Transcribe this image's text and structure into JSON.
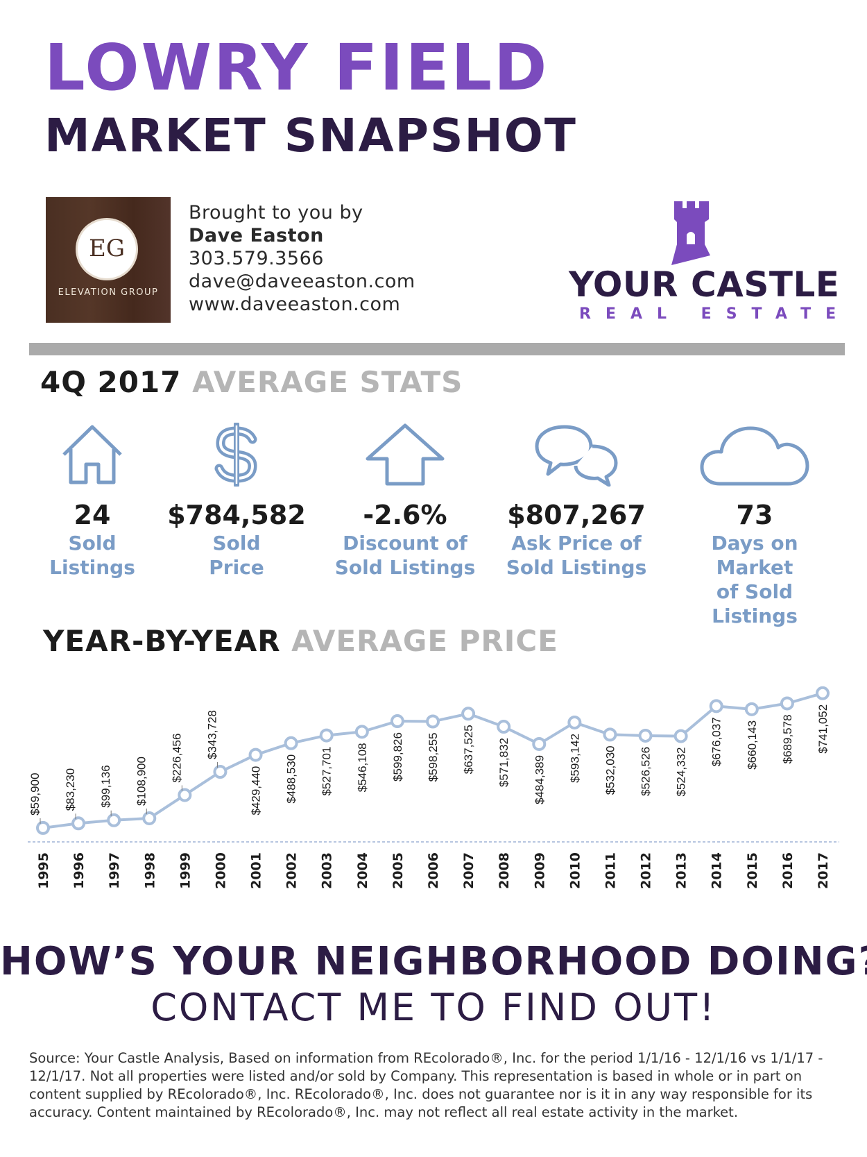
{
  "header": {
    "title_line1": "LOWRY FIELD",
    "title_line2": "MARKET SNAPSHOT"
  },
  "agent": {
    "logo_monogram": "EG",
    "logo_name": "ELEVATION GROUP",
    "intro": "Brought to you by",
    "name": "Dave Easton",
    "phone": "303.579.3566",
    "email": "dave@daveeaston.com",
    "website": "www.daveeaston.com"
  },
  "brand": {
    "name": "YOUR CASTLE",
    "subtitle": "REAL ESTATE",
    "icon": "castle-tower-icon",
    "color": "#7b4bbd"
  },
  "stats_section": {
    "heading_dark": "4Q 2017",
    "heading_grey": "AVERAGE STATS",
    "items": [
      {
        "icon": "house-icon",
        "value": "24",
        "label_line1": "Sold",
        "label_line2": "Listings"
      },
      {
        "icon": "dollar-icon",
        "value": "$784,582",
        "label_line1": "Sold",
        "label_line2": "Price"
      },
      {
        "icon": "up-arrow-icon",
        "value": "-2.6%",
        "label_line1": "Discount of",
        "label_line2": "Sold Listings"
      },
      {
        "icon": "chat-bubbles-icon",
        "value": "$807,267",
        "label_line1": "Ask Price of",
        "label_line2": "Sold Listings"
      },
      {
        "icon": "cloud-icon",
        "value": "73",
        "label_line1": "Days on Market",
        "label_line2": "of Sold Listings"
      }
    ]
  },
  "chart_section": {
    "heading_dark": "YEAR-BY-YEAR",
    "heading_grey": "AVERAGE PRICE"
  },
  "chart_data": {
    "type": "line",
    "title": "",
    "xlabel": "",
    "ylabel": "",
    "x": [
      "1995",
      "1996",
      "1997",
      "1998",
      "1999",
      "2000",
      "2001",
      "2002",
      "2003",
      "2004",
      "2005",
      "2006",
      "2007",
      "2008",
      "2009",
      "2010",
      "2011",
      "2012",
      "2013",
      "2014",
      "2015",
      "2016",
      "2017"
    ],
    "values": [
      59900,
      83230,
      99136,
      108900,
      226456,
      343728,
      429440,
      488530,
      527701,
      546108,
      599826,
      598255,
      637525,
      571832,
      484389,
      593142,
      532030,
      526526,
      524332,
      676037,
      660143,
      689578,
      741052
    ],
    "data_labels": [
      "$59,900",
      "$83,230",
      "$99,136",
      "$108,900",
      "$226,456",
      "$343,728",
      "$429,440",
      "$488,530",
      "$527,701",
      "$546,108",
      "$599,826",
      "$598,255",
      "$637,525",
      "$571,832",
      "$484,389",
      "$593,142",
      "$532,030",
      "$526,526",
      "$524,332",
      "$676,037",
      "$660,143",
      "$689,578",
      "$741,052"
    ],
    "label_side": [
      "above",
      "above",
      "above",
      "above",
      "above",
      "above",
      "below",
      "below",
      "below",
      "below",
      "below",
      "below",
      "below",
      "below",
      "below",
      "below",
      "below",
      "below",
      "below",
      "below",
      "below",
      "below",
      "below"
    ],
    "ylim": [
      0,
      800000
    ],
    "grid": false,
    "line_color": "#a9bfdb",
    "marker_edge_color": "#a9bfdb",
    "baseline_color": "#9fb4d6"
  },
  "cta": {
    "line1": "HOW’S YOUR NEIGHBORHOOD DOING?",
    "line2": "CONTACT ME TO FIND OUT!"
  },
  "footer": {
    "text": "Source:  Your Castle Analysis, Based on information from REcolorado®, Inc. for the period 1/1/16 - 12/1/16 vs 1/1/17 - 12/1/17.  Not all properties were listed and/or sold by Company. This representation is based in whole or in part on content supplied by REcolorado®, Inc. REcolorado®, Inc. does not guarantee nor is  it in any way responsible for its accuracy. Content maintained by REcolorado®, Inc. may not reflect all real estate activity in the market."
  }
}
